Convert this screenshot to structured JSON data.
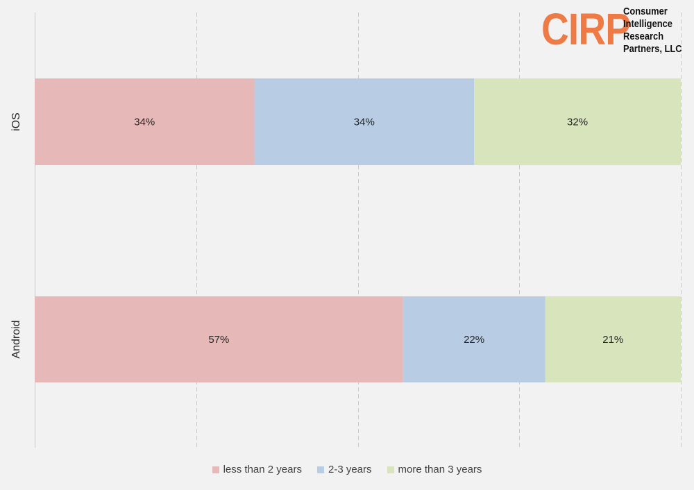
{
  "logo": {
    "mark": "CIRP",
    "lines": [
      "Consumer",
      "Intelligence",
      "Research",
      "Partners, LLC"
    ]
  },
  "colors": {
    "less_than_2": "#e6b8b7",
    "two_to_three": "#b8cce4",
    "more_than_3": "#d8e4bc",
    "grid": "#c8c8c8",
    "text": "#262626"
  },
  "chart_data": {
    "type": "bar",
    "orientation": "horizontal",
    "stacked": "100%",
    "categories": [
      "iOS",
      "Android"
    ],
    "series": [
      {
        "name": "less than 2 years",
        "values": [
          34,
          57
        ],
        "color": "#e6b8b7"
      },
      {
        "name": "2-3 years",
        "values": [
          34,
          22
        ],
        "color": "#b8cce4"
      },
      {
        "name": "more than 3 years",
        "values": [
          32,
          21
        ],
        "color": "#d8e4bc"
      }
    ],
    "data_labels": [
      [
        "34%",
        "57%"
      ],
      [
        "34%",
        "22%"
      ],
      [
        "32%",
        "21%"
      ]
    ],
    "xlim": [
      0,
      100
    ],
    "grid": true,
    "legend": "bottom"
  }
}
